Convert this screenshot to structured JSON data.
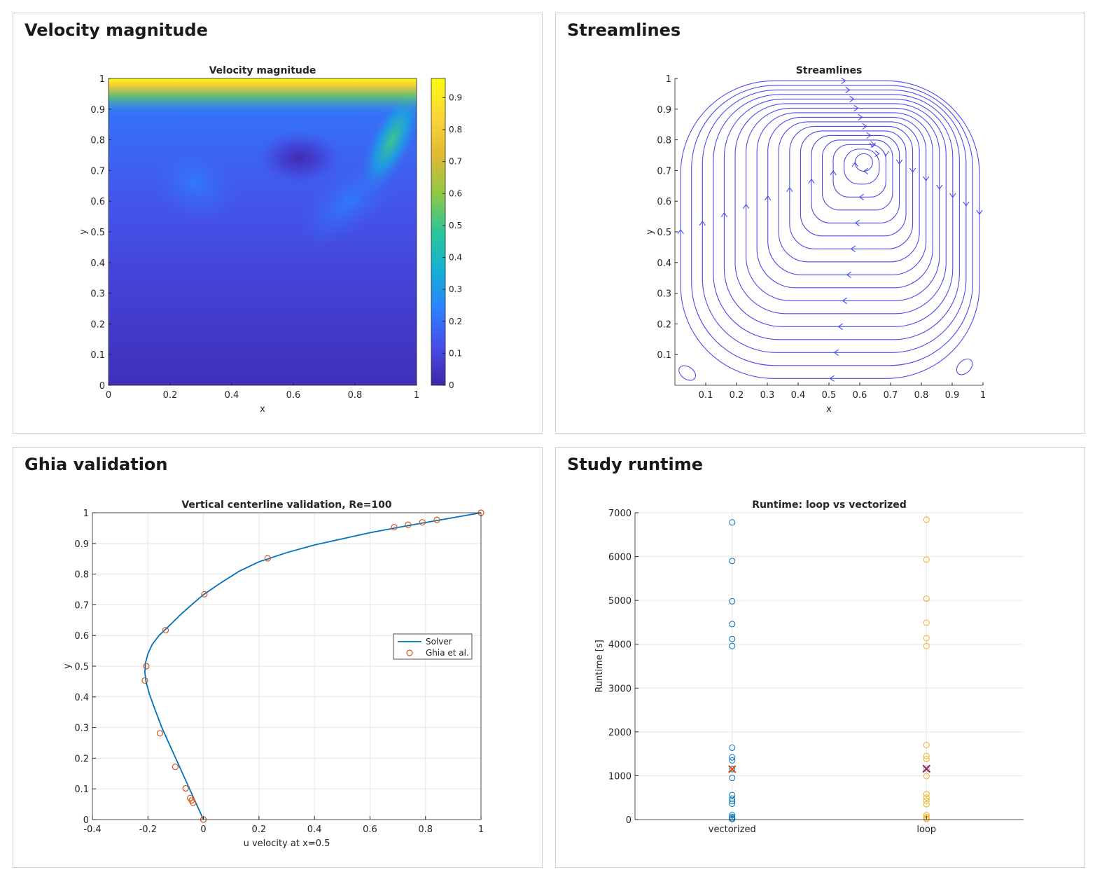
{
  "panels": [
    {
      "title": "Velocity magnitude"
    },
    {
      "title": "Streamlines"
    },
    {
      "title": "Ghia validation"
    },
    {
      "title": "Study runtime"
    }
  ],
  "chart_data": [
    {
      "type": "heatmap",
      "title": "Velocity magnitude",
      "xlabel": "x",
      "ylabel": "y",
      "xlim": [
        0,
        1
      ],
      "ylim": [
        0,
        1
      ],
      "xticks": [
        0,
        0.2,
        0.4,
        0.6,
        0.8,
        1
      ],
      "yticks": [
        0,
        0.1,
        0.2,
        0.3,
        0.4,
        0.5,
        0.6,
        0.7,
        0.8,
        0.9,
        1
      ],
      "colorbar": {
        "range": [
          0,
          0.96
        ],
        "ticks": [
          0,
          0.1,
          0.2,
          0.3,
          0.4,
          0.5,
          0.6,
          0.7,
          0.8,
          0.9
        ]
      },
      "features": [
        {
          "kind": "lid band",
          "y": [
            0.93,
            1.0
          ],
          "value": 0.95
        },
        {
          "kind": "vortex core minimum",
          "x": 0.62,
          "y": 0.74,
          "value": 0.02
        },
        {
          "kind": "side jet maximum",
          "x": 0.92,
          "y": 0.8,
          "value": 0.5
        }
      ],
      "colors": {
        "low": "#3e26a8",
        "mid": "#2aaa8a",
        "high": "#f9fb0e"
      }
    },
    {
      "type": "streamlines",
      "title": "Streamlines",
      "xlabel": "x",
      "ylabel": "y",
      "xlim": [
        0,
        1
      ],
      "ylim": [
        0,
        1
      ],
      "xticks": [
        0.1,
        0.2,
        0.3,
        0.4,
        0.5,
        0.6,
        0.7,
        0.8,
        0.9,
        1
      ],
      "yticks": [
        0.1,
        0.2,
        0.3,
        0.4,
        0.5,
        0.6,
        0.7,
        0.8,
        0.9,
        1
      ],
      "vortex_center": [
        0.62,
        0.74
      ],
      "secondary_vortices": [
        [
          0.04,
          0.04
        ],
        [
          0.94,
          0.06
        ]
      ],
      "color": "#4b4bf0"
    },
    {
      "type": "line",
      "title": "Vertical centerline validation, Re=100",
      "xlabel": "u velocity at x=0.5",
      "ylabel": "y",
      "xlim": [
        -0.4,
        1
      ],
      "ylim": [
        0,
        1
      ],
      "xticks": [
        -0.4,
        -0.2,
        0,
        0.2,
        0.4,
        0.6,
        0.8,
        1
      ],
      "yticks": [
        0,
        0.1,
        0.2,
        0.3,
        0.4,
        0.5,
        0.6,
        0.7,
        0.8,
        0.9,
        1
      ],
      "grid": true,
      "legend_position": "right",
      "series": [
        {
          "name": "Solver",
          "style": "line",
          "color": "#0072bd",
          "x": [
            0,
            -0.015,
            -0.035,
            -0.06,
            -0.09,
            -0.12,
            -0.15,
            -0.175,
            -0.195,
            -0.207,
            -0.211,
            -0.209,
            -0.2,
            -0.185,
            -0.16,
            -0.125,
            -0.08,
            -0.03,
            0.0,
            0.06,
            0.13,
            0.2,
            0.3,
            0.4,
            0.5,
            0.6,
            0.7,
            0.8,
            0.9,
            1.0
          ],
          "y": [
            0,
            0.03,
            0.07,
            0.12,
            0.18,
            0.24,
            0.3,
            0.36,
            0.41,
            0.45,
            0.48,
            0.51,
            0.54,
            0.57,
            0.6,
            0.63,
            0.67,
            0.71,
            0.733,
            0.77,
            0.81,
            0.84,
            0.87,
            0.895,
            0.915,
            0.935,
            0.952,
            0.968,
            0.984,
            1.0
          ]
        },
        {
          "name": "Ghia et al.",
          "style": "circle",
          "color": "#d95319",
          "x": [
            0,
            -0.0372,
            -0.0419,
            -0.0478,
            -0.0643,
            -0.1015,
            -0.1566,
            -0.2109,
            -0.2058,
            -0.1364,
            0.0033,
            0.2315,
            0.6872,
            0.7372,
            0.7887,
            0.8412,
            1.0
          ],
          "y": [
            0,
            0.0547,
            0.0625,
            0.0703,
            0.1016,
            0.1719,
            0.2813,
            0.4531,
            0.5,
            0.6172,
            0.7344,
            0.8516,
            0.9531,
            0.9609,
            0.9688,
            0.9766,
            1.0
          ]
        }
      ]
    },
    {
      "type": "scatter",
      "title": "Runtime: loop vs vectorized",
      "xlabel": "",
      "ylabel": "Runtime [s]",
      "ylim": [
        0,
        7000
      ],
      "yticks": [
        0,
        1000,
        2000,
        3000,
        4000,
        5000,
        6000,
        7000
      ],
      "grid": true,
      "categories": [
        "vectorized",
        "loop"
      ],
      "series": [
        {
          "category": "vectorized",
          "color": "#0072bd",
          "values": [
            6780,
            5900,
            4980,
            4460,
            4120,
            3960,
            1640,
            1420,
            1350,
            1150,
            950,
            560,
            480,
            420,
            360,
            100,
            60,
            30,
            10
          ]
        },
        {
          "category": "loop",
          "color": "#edb120",
          "values": [
            6840,
            5930,
            5040,
            4490,
            4140,
            3960,
            1700,
            1450,
            1380,
            1160,
            990,
            580,
            500,
            430,
            350,
            100,
            60,
            30,
            10
          ]
        }
      ],
      "means": [
        {
          "category": "vectorized",
          "value": 1150,
          "color": "#d95319"
        },
        {
          "category": "loop",
          "value": 1160,
          "color": "#7e2f8e"
        }
      ]
    }
  ]
}
